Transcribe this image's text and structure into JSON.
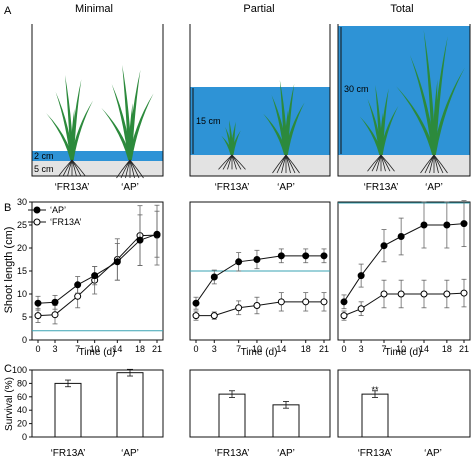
{
  "panel_letters": {
    "a": "A",
    "b": "B",
    "c": "C"
  },
  "treatments": [
    "Minimal",
    "Partial",
    "Total"
  ],
  "genotype_labels": [
    "‘FR13A’",
    "‘AP’"
  ],
  "depth_labels": [
    "2 cm",
    "5 cm",
    "15 cm",
    "30 cm"
  ],
  "colors": {
    "water": "#2e93d6",
    "soil": "#e3e3e3",
    "plant": "#2c8a3c",
    "root": "#222222",
    "waterline": "#3aa3b3",
    "ap_marker": "#000000",
    "fr13a_marker": "#ffffff"
  },
  "chart_data": [
    {
      "type": "line",
      "treatment": "Minimal",
      "ylabel": "Shoot length (cm)",
      "xlabel": "Time (d)",
      "ylim": [
        0,
        30
      ],
      "xlim": [
        0,
        21
      ],
      "yticks": [
        0,
        5,
        10,
        15,
        20,
        25,
        30
      ],
      "xticks": [
        0,
        3,
        7,
        10,
        14,
        18,
        21
      ],
      "water_level": 2,
      "legend": "top-left",
      "x": [
        0,
        3,
        7,
        10,
        14,
        18,
        21
      ],
      "series": [
        {
          "name": "‘AP’",
          "marker": "filled",
          "values": [
            8,
            8.2,
            12,
            14,
            17,
            21.7,
            23
          ],
          "err": [
            1.5,
            1.5,
            1.8,
            2,
            4,
            5.5,
            5
          ]
        },
        {
          "name": "‘FR13A’",
          "marker": "open",
          "values": [
            5.3,
            5.5,
            9.5,
            13,
            17.5,
            22.7,
            22.8
          ],
          "err": [
            1.5,
            2,
            2.5,
            3,
            4.5,
            6.5,
            6.5
          ]
        }
      ]
    },
    {
      "type": "line",
      "treatment": "Partial",
      "xlabel": "Time (d)",
      "ylim": [
        0,
        30
      ],
      "xlim": [
        0,
        21
      ],
      "yticks": [
        0,
        5,
        10,
        15,
        20,
        25,
        30
      ],
      "xticks": [
        0,
        3,
        7,
        10,
        14,
        18,
        21
      ],
      "water_level": 15,
      "x": [
        0,
        3,
        7,
        10,
        14,
        18,
        21
      ],
      "series": [
        {
          "name": "‘AP’",
          "marker": "filled",
          "values": [
            8,
            13.7,
            17,
            17.5,
            18.3,
            18.3,
            18.3
          ],
          "err": [
            1.3,
            1.5,
            2,
            2,
            1.5,
            1.5,
            1.5
          ]
        },
        {
          "name": "‘FR13A’",
          "marker": "open",
          "values": [
            5.3,
            5.3,
            7,
            7.5,
            8.3,
            8.3,
            8.3
          ],
          "err": [
            1,
            0.8,
            1.5,
            1.8,
            2,
            2,
            2
          ]
        }
      ]
    },
    {
      "type": "line",
      "treatment": "Total",
      "xlabel": "Time (d)",
      "ylim": [
        0,
        30
      ],
      "xlim": [
        0,
        21
      ],
      "yticks": [
        0,
        5,
        10,
        15,
        20,
        25,
        30
      ],
      "xticks": [
        0,
        3,
        7,
        10,
        14,
        18,
        21
      ],
      "water_level": 30,
      "x": [
        0,
        3,
        7,
        10,
        14,
        18,
        21
      ],
      "series": [
        {
          "name": "‘AP’",
          "marker": "filled",
          "values": [
            8.3,
            14,
            20.5,
            22.5,
            25,
            25,
            25.3
          ],
          "err": [
            1.5,
            2.5,
            3.5,
            4,
            5,
            5,
            5
          ]
        },
        {
          "name": "‘FR13A’",
          "marker": "open",
          "values": [
            5.3,
            6.8,
            10,
            10,
            10,
            10,
            10.2
          ],
          "err": [
            1,
            1.5,
            3,
            3,
            3,
            3,
            3
          ]
        }
      ]
    },
    {
      "type": "bar",
      "treatment": "Minimal",
      "ylabel": "Survival (%)",
      "ylim": [
        0,
        100
      ],
      "yticks": [
        0,
        20,
        40,
        60,
        80,
        100
      ],
      "categories": [
        "‘FR13A’",
        "‘AP’"
      ],
      "values": [
        80,
        96
      ],
      "err": [
        5,
        5
      ]
    },
    {
      "type": "bar",
      "treatment": "Partial",
      "ylim": [
        0,
        100
      ],
      "categories": [
        "‘FR13A’",
        "‘AP’"
      ],
      "values": [
        64,
        48
      ],
      "err": [
        5,
        5
      ]
    },
    {
      "type": "bar",
      "treatment": "Total",
      "ylim": [
        0,
        100
      ],
      "categories": [
        "‘FR13A’",
        "‘AP’"
      ],
      "values": [
        64,
        0
      ],
      "err": [
        5,
        0
      ],
      "annotation": "**"
    }
  ]
}
